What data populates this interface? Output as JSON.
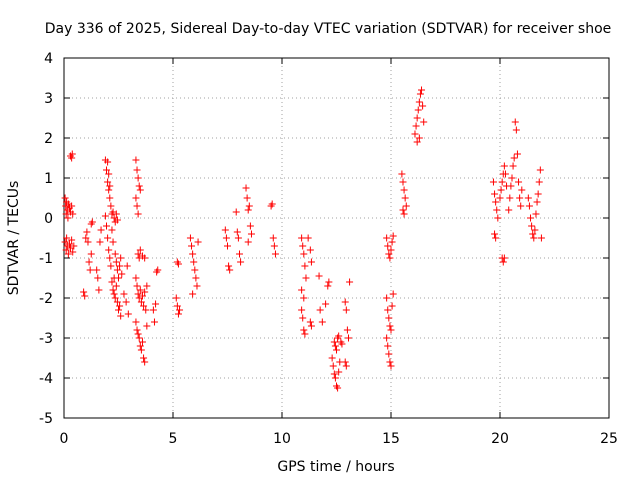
{
  "chart_data": {
    "type": "scatter",
    "title": "Day 336 of 2025, Sidereal Day-to-day VTEC variation (SDTVAR) for receiver shoe",
    "xlabel": "GPS time / hours",
    "ylabel": "SDTVAR / TECUs",
    "xlim": [
      0,
      25
    ],
    "ylim": [
      -5,
      4
    ],
    "grid": true,
    "xticks": [
      "0",
      "5",
      "10",
      "15",
      "20",
      "25"
    ],
    "yticks": [
      "-5",
      "-4",
      "-3",
      "-2",
      "-1",
      "0",
      "1",
      "2",
      "3",
      "4"
    ],
    "marker": "+",
    "marker_color": "#ff0000",
    "series": [
      {
        "name": "SDTVAR",
        "points": [
          [
            0.05,
            0.5
          ],
          [
            0.08,
            0.3
          ],
          [
            0.1,
            0.1
          ],
          [
            0.12,
            0.4
          ],
          [
            0.15,
            0.2
          ],
          [
            0.18,
            0.0
          ],
          [
            0.2,
            0.35
          ],
          [
            0.25,
            0.25
          ],
          [
            0.3,
            0.15
          ],
          [
            0.35,
            0.3
          ],
          [
            0.4,
            0.1
          ],
          [
            0.05,
            -0.6
          ],
          [
            0.1,
            -0.8
          ],
          [
            0.12,
            -0.5
          ],
          [
            0.15,
            -0.7
          ],
          [
            0.2,
            -0.9
          ],
          [
            0.25,
            -0.65
          ],
          [
            0.3,
            -0.75
          ],
          [
            0.35,
            -0.55
          ],
          [
            0.4,
            -0.85
          ],
          [
            0.45,
            -0.7
          ],
          [
            0.3,
            1.55
          ],
          [
            0.35,
            1.5
          ],
          [
            0.38,
            1.6
          ],
          [
            0.9,
            -1.85
          ],
          [
            0.95,
            -1.95
          ],
          [
            1.0,
            -0.5
          ],
          [
            1.05,
            -0.35
          ],
          [
            1.1,
            -0.6
          ],
          [
            1.15,
            -1.1
          ],
          [
            1.2,
            -1.3
          ],
          [
            1.25,
            -0.9
          ],
          [
            1.25,
            -0.15
          ],
          [
            1.3,
            -0.1
          ],
          [
            1.5,
            -1.3
          ],
          [
            1.55,
            -1.5
          ],
          [
            1.6,
            -1.8
          ],
          [
            1.65,
            -0.6
          ],
          [
            1.7,
            -0.3
          ],
          [
            1.9,
            0.05
          ],
          [
            1.95,
            -0.2
          ],
          [
            2.0,
            -0.5
          ],
          [
            2.05,
            -0.8
          ],
          [
            2.1,
            -1.0
          ],
          [
            2.15,
            -1.2
          ],
          [
            2.2,
            -0.3
          ],
          [
            2.25,
            -0.6
          ],
          [
            2.3,
            -1.5
          ],
          [
            1.9,
            1.45
          ],
          [
            1.95,
            1.2
          ],
          [
            2.0,
            0.9
          ],
          [
            2.05,
            0.7
          ],
          [
            2.1,
            0.5
          ],
          [
            2.15,
            0.3
          ],
          [
            2.0,
            1.4
          ],
          [
            2.05,
            1.1
          ],
          [
            2.1,
            0.8
          ],
          [
            2.2,
            0.1
          ],
          [
            2.25,
            0.15
          ],
          [
            2.3,
            0.0
          ],
          [
            2.35,
            -0.1
          ],
          [
            2.4,
            0.1
          ],
          [
            2.45,
            -0.05
          ],
          [
            2.2,
            -1.6
          ],
          [
            2.25,
            -1.8
          ],
          [
            2.3,
            -1.9
          ],
          [
            2.35,
            -2.0
          ],
          [
            2.4,
            -1.7
          ],
          [
            2.45,
            -2.1
          ],
          [
            2.5,
            -2.3
          ],
          [
            2.55,
            -2.2
          ],
          [
            2.6,
            -2.45
          ],
          [
            2.35,
            -0.9
          ],
          [
            2.4,
            -1.1
          ],
          [
            2.45,
            -1.3
          ],
          [
            2.5,
            -1.5
          ],
          [
            2.55,
            -1.2
          ],
          [
            2.6,
            -1.0
          ],
          [
            2.65,
            -1.4
          ],
          [
            2.75,
            -1.9
          ],
          [
            2.85,
            -2.1
          ],
          [
            2.9,
            -1.2
          ],
          [
            2.95,
            -2.4
          ],
          [
            3.3,
            1.45
          ],
          [
            3.35,
            1.2
          ],
          [
            3.4,
            1.0
          ],
          [
            3.45,
            0.8
          ],
          [
            3.5,
            0.7
          ],
          [
            3.3,
            0.5
          ],
          [
            3.35,
            0.3
          ],
          [
            3.4,
            0.1
          ],
          [
            3.3,
            -1.5
          ],
          [
            3.35,
            -1.7
          ],
          [
            3.4,
            -1.9
          ],
          [
            3.45,
            -2.0
          ],
          [
            3.5,
            -1.8
          ],
          [
            3.55,
            -2.1
          ],
          [
            3.6,
            -1.95
          ],
          [
            3.65,
            -2.2
          ],
          [
            3.7,
            -1.85
          ],
          [
            3.8,
            -1.7
          ],
          [
            3.3,
            -2.6
          ],
          [
            3.35,
            -2.8
          ],
          [
            3.4,
            -2.9
          ],
          [
            3.45,
            -3.0
          ],
          [
            3.5,
            -3.2
          ],
          [
            3.55,
            -3.3
          ],
          [
            3.6,
            -3.1
          ],
          [
            3.65,
            -3.5
          ],
          [
            3.7,
            -3.6
          ],
          [
            3.4,
            -0.9
          ],
          [
            3.45,
            -1.0
          ],
          [
            3.5,
            -0.8
          ],
          [
            3.6,
            -0.95
          ],
          [
            3.7,
            -1.0
          ],
          [
            3.75,
            -2.3
          ],
          [
            3.8,
            -2.7
          ],
          [
            4.1,
            -2.3
          ],
          [
            4.15,
            -2.6
          ],
          [
            4.2,
            -2.15
          ],
          [
            4.25,
            -1.35
          ],
          [
            4.3,
            -1.3
          ],
          [
            5.2,
            -1.1
          ],
          [
            5.25,
            -1.15
          ],
          [
            5.15,
            -2.0
          ],
          [
            5.2,
            -2.2
          ],
          [
            5.25,
            -2.4
          ],
          [
            5.3,
            -2.3
          ],
          [
            5.8,
            -0.5
          ],
          [
            5.85,
            -0.7
          ],
          [
            5.9,
            -0.9
          ],
          [
            5.95,
            -1.1
          ],
          [
            6.0,
            -1.3
          ],
          [
            6.05,
            -1.5
          ],
          [
            6.1,
            -1.7
          ],
          [
            6.15,
            -0.6
          ],
          [
            5.9,
            -1.9
          ],
          [
            7.4,
            -0.3
          ],
          [
            7.45,
            -0.5
          ],
          [
            7.5,
            -0.7
          ],
          [
            7.55,
            -1.2
          ],
          [
            7.6,
            -1.3
          ],
          [
            7.9,
            0.15
          ],
          [
            7.95,
            -0.35
          ],
          [
            8.0,
            -0.5
          ],
          [
            8.05,
            -0.9
          ],
          [
            8.1,
            -1.1
          ],
          [
            8.35,
            0.75
          ],
          [
            8.4,
            0.5
          ],
          [
            8.45,
            0.2
          ],
          [
            8.5,
            0.3
          ],
          [
            8.55,
            -0.2
          ],
          [
            8.6,
            -0.4
          ],
          [
            8.45,
            -0.6
          ],
          [
            9.5,
            0.3
          ],
          [
            9.55,
            0.35
          ],
          [
            9.6,
            -0.5
          ],
          [
            9.65,
            -0.7
          ],
          [
            9.7,
            -0.9
          ],
          [
            10.9,
            -0.5
          ],
          [
            10.95,
            -0.7
          ],
          [
            11.0,
            -0.9
          ],
          [
            11.05,
            -1.2
          ],
          [
            11.1,
            -1.5
          ],
          [
            10.9,
            -1.8
          ],
          [
            11.0,
            -2.0
          ],
          [
            10.9,
            -2.3
          ],
          [
            10.95,
            -2.5
          ],
          [
            11.0,
            -2.8
          ],
          [
            11.05,
            -2.9
          ],
          [
            11.2,
            -0.5
          ],
          [
            11.3,
            -0.8
          ],
          [
            11.35,
            -1.1
          ],
          [
            11.3,
            -2.6
          ],
          [
            11.35,
            -2.7
          ],
          [
            11.7,
            -1.45
          ],
          [
            11.75,
            -2.3
          ],
          [
            11.85,
            -2.6
          ],
          [
            12.0,
            -2.15
          ],
          [
            12.1,
            -1.7
          ],
          [
            12.15,
            -1.6
          ],
          [
            12.3,
            -3.5
          ],
          [
            12.35,
            -3.7
          ],
          [
            12.4,
            -3.9
          ],
          [
            12.45,
            -4.0
          ],
          [
            12.5,
            -4.2
          ],
          [
            12.55,
            -4.25
          ],
          [
            12.6,
            -3.85
          ],
          [
            12.65,
            -3.6
          ],
          [
            12.4,
            -3.1
          ],
          [
            12.45,
            -3.2
          ],
          [
            12.5,
            -3.3
          ],
          [
            12.55,
            -3.0
          ],
          [
            12.6,
            -2.95
          ],
          [
            12.7,
            -3.1
          ],
          [
            12.75,
            -3.15
          ],
          [
            12.9,
            -2.1
          ],
          [
            12.95,
            -2.3
          ],
          [
            13.0,
            -2.8
          ],
          [
            13.05,
            -3.0
          ],
          [
            12.9,
            -3.6
          ],
          [
            12.95,
            -3.7
          ],
          [
            13.1,
            -1.6
          ],
          [
            14.8,
            -0.5
          ],
          [
            14.85,
            -0.7
          ],
          [
            14.9,
            -0.9
          ],
          [
            14.95,
            -1.0
          ],
          [
            15.0,
            -0.8
          ],
          [
            15.05,
            -0.6
          ],
          [
            15.1,
            -0.45
          ],
          [
            14.8,
            -2.0
          ],
          [
            14.85,
            -2.3
          ],
          [
            14.9,
            -2.5
          ],
          [
            14.95,
            -2.7
          ],
          [
            15.0,
            -2.8
          ],
          [
            15.05,
            -2.2
          ],
          [
            15.1,
            -1.9
          ],
          [
            14.8,
            -3.0
          ],
          [
            14.85,
            -3.2
          ],
          [
            14.9,
            -3.4
          ],
          [
            14.95,
            -3.6
          ],
          [
            15.0,
            -3.7
          ],
          [
            15.5,
            1.1
          ],
          [
            15.55,
            0.9
          ],
          [
            15.6,
            0.7
          ],
          [
            15.65,
            0.5
          ],
          [
            15.7,
            0.3
          ],
          [
            15.55,
            0.2
          ],
          [
            15.6,
            0.1
          ],
          [
            16.1,
            2.1
          ],
          [
            16.15,
            2.3
          ],
          [
            16.2,
            2.5
          ],
          [
            16.25,
            2.7
          ],
          [
            16.3,
            2.9
          ],
          [
            16.35,
            3.1
          ],
          [
            16.4,
            3.2
          ],
          [
            16.45,
            2.8
          ],
          [
            16.5,
            2.4
          ],
          [
            16.2,
            1.9
          ],
          [
            16.3,
            2.0
          ],
          [
            19.7,
            0.9
          ],
          [
            19.75,
            0.6
          ],
          [
            19.8,
            0.4
          ],
          [
            19.85,
            0.2
          ],
          [
            19.9,
            0.0
          ],
          [
            19.75,
            -0.4
          ],
          [
            19.8,
            -0.5
          ],
          [
            20.0,
            0.5
          ],
          [
            20.05,
            0.7
          ],
          [
            20.1,
            0.9
          ],
          [
            20.15,
            1.1
          ],
          [
            20.2,
            1.3
          ],
          [
            20.25,
            1.1
          ],
          [
            20.3,
            0.8
          ],
          [
            20.1,
            -1.0
          ],
          [
            20.15,
            -1.1
          ],
          [
            20.2,
            -1.0
          ],
          [
            20.4,
            0.2
          ],
          [
            20.45,
            0.5
          ],
          [
            20.5,
            0.8
          ],
          [
            20.55,
            1.0
          ],
          [
            20.6,
            1.3
          ],
          [
            20.65,
            1.5
          ],
          [
            20.7,
            2.4
          ],
          [
            20.75,
            2.2
          ],
          [
            20.8,
            1.6
          ],
          [
            20.85,
            0.9
          ],
          [
            20.9,
            0.5
          ],
          [
            20.95,
            0.3
          ],
          [
            21.0,
            0.7
          ],
          [
            21.3,
            0.5
          ],
          [
            21.35,
            0.3
          ],
          [
            21.4,
            0.0
          ],
          [
            21.45,
            -0.2
          ],
          [
            21.5,
            -0.4
          ],
          [
            21.55,
            -0.5
          ],
          [
            21.6,
            -0.3
          ],
          [
            21.65,
            0.1
          ],
          [
            21.7,
            0.4
          ],
          [
            21.75,
            0.6
          ],
          [
            21.8,
            0.9
          ],
          [
            21.85,
            1.2
          ],
          [
            21.9,
            -0.5
          ]
        ]
      }
    ]
  }
}
